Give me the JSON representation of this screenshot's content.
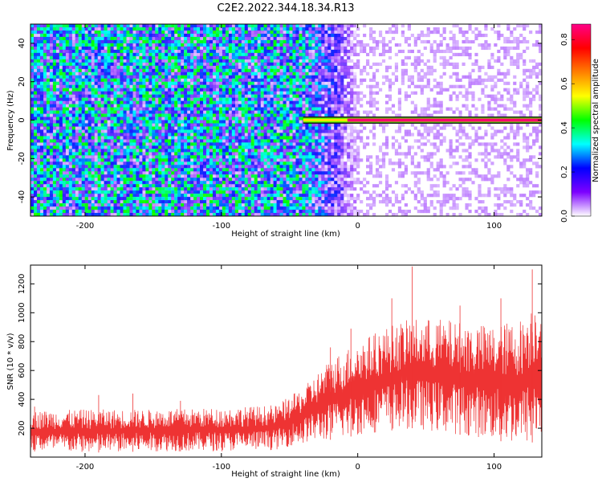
{
  "title": "C2E2.2022.344.18.34.R13",
  "chart_data": [
    {
      "type": "heatmap",
      "xlabel": "Height of straight line (km)",
      "ylabel": "Frequency (Hz)",
      "xlim": [
        -240,
        135
      ],
      "ylim": [
        -50,
        50
      ],
      "x_ticks": [
        -200,
        -100,
        0,
        100
      ],
      "y_ticks": [
        -40,
        -20,
        0,
        20,
        40
      ],
      "colorbar": {
        "label": "Normalized spectral amplitude",
        "range": [
          0.0,
          0.87
        ],
        "ticks": [
          "0.0",
          "0.2",
          "0.4",
          "0.6",
          "0.8"
        ],
        "tick_values": [
          0.0,
          0.2,
          0.4,
          0.6,
          0.8
        ],
        "colormap": [
          "#ffffff",
          "#7d00ff",
          "#0000ff",
          "#00ffff",
          "#00ff00",
          "#ffff00",
          "#ff7f00",
          "#ff0000",
          "#ff0088"
        ]
      },
      "features": {
        "high_noise_region_x": [
          -240,
          -40
        ],
        "transition_region_x": [
          -40,
          0
        ],
        "low_noise_region_x": [
          0,
          135
        ],
        "signal_band_frequency": 0,
        "signal_band_start_x": -40,
        "signal_band_level": 0.85,
        "noise_level_left": 0.25,
        "noise_level_right": 0.05
      }
    },
    {
      "type": "line",
      "xlabel": "Height of straight line (km)",
      "ylabel": "SNR (10 * v/v)",
      "xlim": [
        -240,
        135
      ],
      "ylim": [
        0,
        1330
      ],
      "x_ticks": [
        -200,
        -100,
        0,
        100
      ],
      "y_ticks": [
        200,
        400,
        600,
        800,
        1000,
        1200
      ],
      "series_color": "#ee3333",
      "envelope": {
        "x": [
          -240,
          -200,
          -150,
          -100,
          -60,
          -40,
          -20,
          0,
          20,
          40,
          60,
          80,
          100,
          120,
          135
        ],
        "lower": [
          40,
          30,
          40,
          40,
          50,
          100,
          120,
          150,
          180,
          200,
          170,
          150,
          120,
          80,
          120
        ],
        "upper": [
          320,
          330,
          330,
          340,
          360,
          480,
          680,
          800,
          900,
          960,
          960,
          930,
          910,
          960,
          1150
        ]
      },
      "spikes": [
        {
          "x": -237,
          "y": 350
        },
        {
          "x": -190,
          "y": 430
        },
        {
          "x": -165,
          "y": 440
        },
        {
          "x": -130,
          "y": 390
        },
        {
          "x": -40,
          "y": 400
        },
        {
          "x": -20,
          "y": 760
        },
        {
          "x": -5,
          "y": 890
        },
        {
          "x": 25,
          "y": 1100
        },
        {
          "x": 40,
          "y": 1320
        },
        {
          "x": 75,
          "y": 1050
        },
        {
          "x": 105,
          "y": 1100
        },
        {
          "x": 128,
          "y": 1300
        }
      ]
    }
  ]
}
